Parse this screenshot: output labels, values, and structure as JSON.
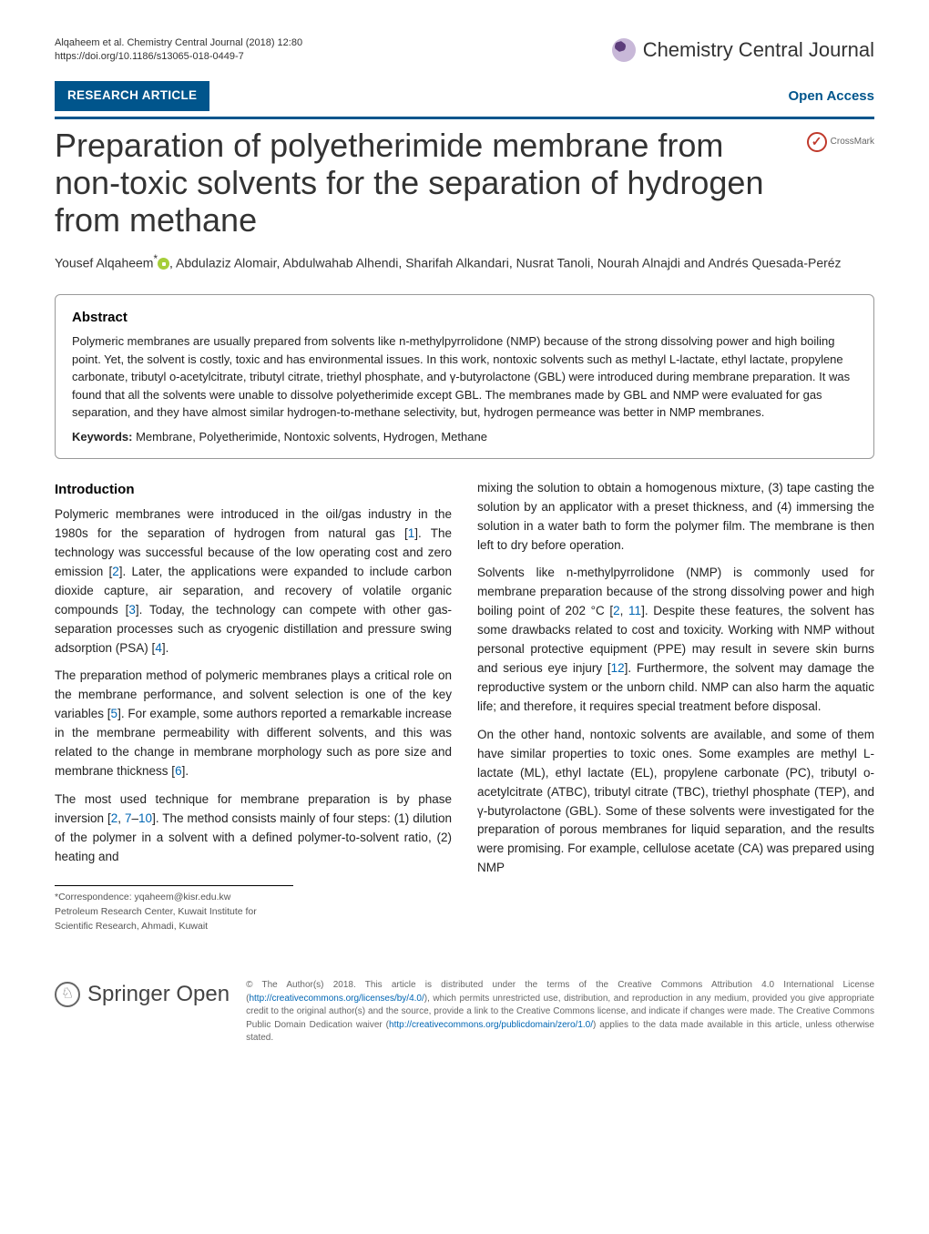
{
  "header": {
    "citation": "Alqaheem et al. Chemistry Central Journal  (2018) 12:80",
    "doi": "https://doi.org/10.1186/s13065-018-0449-7",
    "journal_name": "Chemistry Central Journal"
  },
  "banner": {
    "research_label": "RESEARCH ARTICLE",
    "open_access_label": "Open Access",
    "crossmark_label": "CrossMark",
    "crossmark_color": "#c0392b",
    "bar_color": "#00558c"
  },
  "title": "Preparation of polyetherimide membrane from non-toxic solvents for the separation of hydrogen from methane",
  "authors": "Yousef Alqaheem* , Abdulaziz Alomair, Abdulwahab Alhendi, Sharifah Alkandari, Nusrat Tanoli, Nourah Alnajdi and Andrés Quesada-Peréz",
  "abstract": {
    "heading": "Abstract",
    "body": "Polymeric membranes are usually prepared from solvents like n-methylpyrrolidone (NMP) because of the strong dissolving power and high boiling point. Yet, the solvent is costly, toxic and has environmental issues. In this work, nontoxic solvents such as methyl L-lactate, ethyl lactate, propylene carbonate, tributyl o-acetylcitrate, tributyl citrate, triethyl phosphate, and γ-butyrolactone (GBL) were introduced during membrane preparation. It was found that all the solvents were unable to dissolve polyetherimide except GBL. The membranes made by GBL and NMP were evaluated for gas separation, and they have almost similar hydrogen-to-methane selectivity, but, hydrogen permeance was better in NMP membranes.",
    "keywords_label": "Keywords:",
    "keywords": "Membrane, Polyetherimide, Nontoxic solvents, Hydrogen, Methane"
  },
  "body": {
    "intro_heading": "Introduction",
    "left_p1a": "Polymeric membranes were introduced in the oil/gas industry in the 1980s for the separation of hydrogen from natural gas [",
    "left_p1_r1": "1",
    "left_p1b": "]. The technology was successful because of the low operating cost and zero emission [",
    "left_p1_r2": "2",
    "left_p1c": "]. Later, the applications were expanded to include carbon dioxide capture, air separation, and recovery of volatile organic compounds [",
    "left_p1_r3": "3",
    "left_p1d": "]. Today, the technology can compete with other gas-separation processes such as cryogenic distillation and pressure swing adsorption (PSA) [",
    "left_p1_r4": "4",
    "left_p1e": "].",
    "left_p2a": "The preparation method of polymeric membranes plays a critical role on the membrane performance, and solvent selection is one of the key variables [",
    "left_p2_r5": "5",
    "left_p2b": "]. For example, some authors reported a remarkable increase in the membrane permeability with different solvents, and this was related to the change in membrane morphology such as pore size and membrane thickness [",
    "left_p2_r6": "6",
    "left_p2c": "].",
    "left_p3a": "The most used technique for membrane preparation is by phase inversion [",
    "left_p3_r2": "2",
    "left_p3_comma": ", ",
    "left_p3_r7": "7",
    "left_p3_dash": "–",
    "left_p3_r10": "10",
    "left_p3b": "]. The method consists mainly of four steps: (1) dilution of the polymer in a solvent with a defined polymer-to-solvent ratio, (2) heating and",
    "right_p1": "mixing the solution to obtain a homogenous mixture, (3) tape casting the solution by an applicator with a preset thickness, and (4) immersing the solution in a water bath to form the polymer film. The membrane is then left to dry before operation.",
    "right_p2a": "Solvents like n-methylpyrrolidone (NMP) is commonly used for membrane preparation because of the strong dissolving power and high boiling point of 202 °C [",
    "right_p2_r2": "2",
    "right_p2_comma": ", ",
    "right_p2_r11": "11",
    "right_p2b": "]. Despite these features, the solvent has some drawbacks related to cost and toxicity. Working with NMP without personal protective equipment (PPE) may result in severe skin burns and serious eye injury [",
    "right_p2_r12": "12",
    "right_p2c": "]. Furthermore, the solvent may damage the reproductive system or the unborn child. NMP can also harm the aquatic life; and therefore, it requires special treatment before disposal.",
    "right_p3": "On the other hand, nontoxic solvents are available, and some of them have similar properties to toxic ones. Some examples are methyl L-lactate (ML), ethyl lactate (EL), propylene carbonate (PC), tributyl o-acetylcitrate (ATBC), tributyl citrate (TBC), triethyl phosphate (TEP), and γ-butyrolactone (GBL). Some of these solvents were investigated for the preparation of porous membranes for liquid separation, and the results were promising. For example, cellulose acetate (CA) was prepared using NMP"
  },
  "correspondence": {
    "line1": "*Correspondence:  yqaheem@kisr.edu.kw",
    "line2": "Petroleum Research Center, Kuwait Institute for Scientific Research, Ahmadi, Kuwait"
  },
  "footer": {
    "springer_label": "Springer",
    "springer_open": "Open",
    "copyright_a": "© The Author(s) 2018. This article is distributed under the terms of the Creative Commons Attribution 4.0 International License (",
    "cc_link": "http://creativecommons.org/licenses/by/4.0/",
    "copyright_b": "), which permits unrestricted use, distribution, and reproduction in any medium, provided you give appropriate credit to the original author(s) and the source, provide a link to the Creative Commons license, and indicate if changes were made. The Creative Commons Public Domain Dedication waiver (",
    "pd_link": "http://creativecommons.org/publicdomain/zero/1.0/",
    "copyright_c": ") applies to the data made available in this article, unless otherwise stated."
  },
  "colors": {
    "primary_blue": "#00558c",
    "link_blue": "#0066b3",
    "orcid_green": "#a6ce39",
    "text": "#222222",
    "background": "#ffffff"
  },
  "typography": {
    "title_fontsize": 36,
    "body_fontsize": 13.5,
    "abstract_fontsize": 13,
    "header_fontsize": 11,
    "footnote_fontsize": 10
  }
}
